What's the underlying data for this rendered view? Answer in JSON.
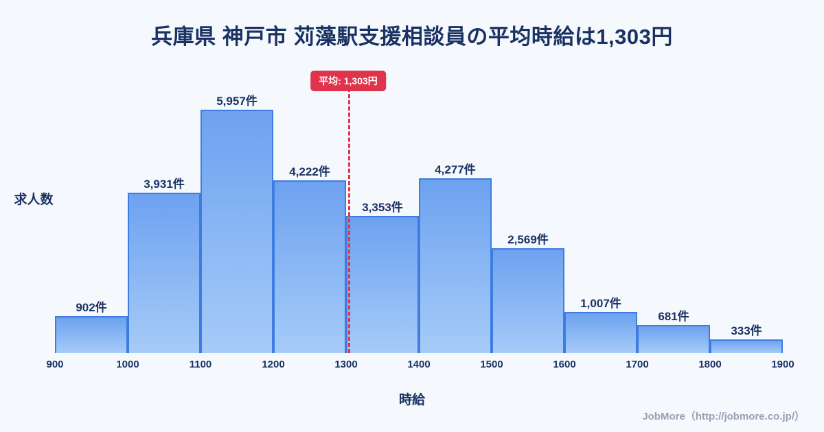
{
  "title": "兵庫県 神戸市 苅藻駅支援相談員の平均時給は1,303円",
  "average_badge_label": "平均: 1,303円",
  "footer_credit": "JobMore（http://jobmore.co.jp/）",
  "colors": {
    "background": "#f5f8fc",
    "title_text": "#1a3263",
    "bar_fill_top": "#6da2f0",
    "bar_fill_bottom": "#a6cbf8",
    "bar_border": "#3e7de0",
    "average_line": "#e0344d",
    "footer_text": "#98a2b3"
  },
  "chart_data": {
    "type": "bar",
    "title": "兵庫県 神戸市 苅藻駅支援相談員の平均時給は1,303円",
    "xlabel": "時給",
    "ylabel": "求人数",
    "bin_edges": [
      900,
      1000,
      1100,
      1200,
      1300,
      1400,
      1500,
      1600,
      1700,
      1800,
      1900
    ],
    "tick_labels": [
      "900",
      "1000",
      "1100",
      "1200",
      "1300",
      "1400",
      "1500",
      "1600",
      "1700",
      "1800",
      "1900"
    ],
    "values": [
      902,
      3931,
      5957,
      4222,
      3353,
      4277,
      2569,
      1007,
      681,
      333
    ],
    "bar_labels": [
      "902件",
      "3,931件",
      "5,957件",
      "4,222件",
      "3,353件",
      "4,277件",
      "2,569件",
      "1,007件",
      "681件",
      "333件"
    ],
    "average": 1303,
    "average_label": "平均: 1,303円",
    "ylim": [
      0,
      5957
    ],
    "grid": false,
    "legend": false
  }
}
